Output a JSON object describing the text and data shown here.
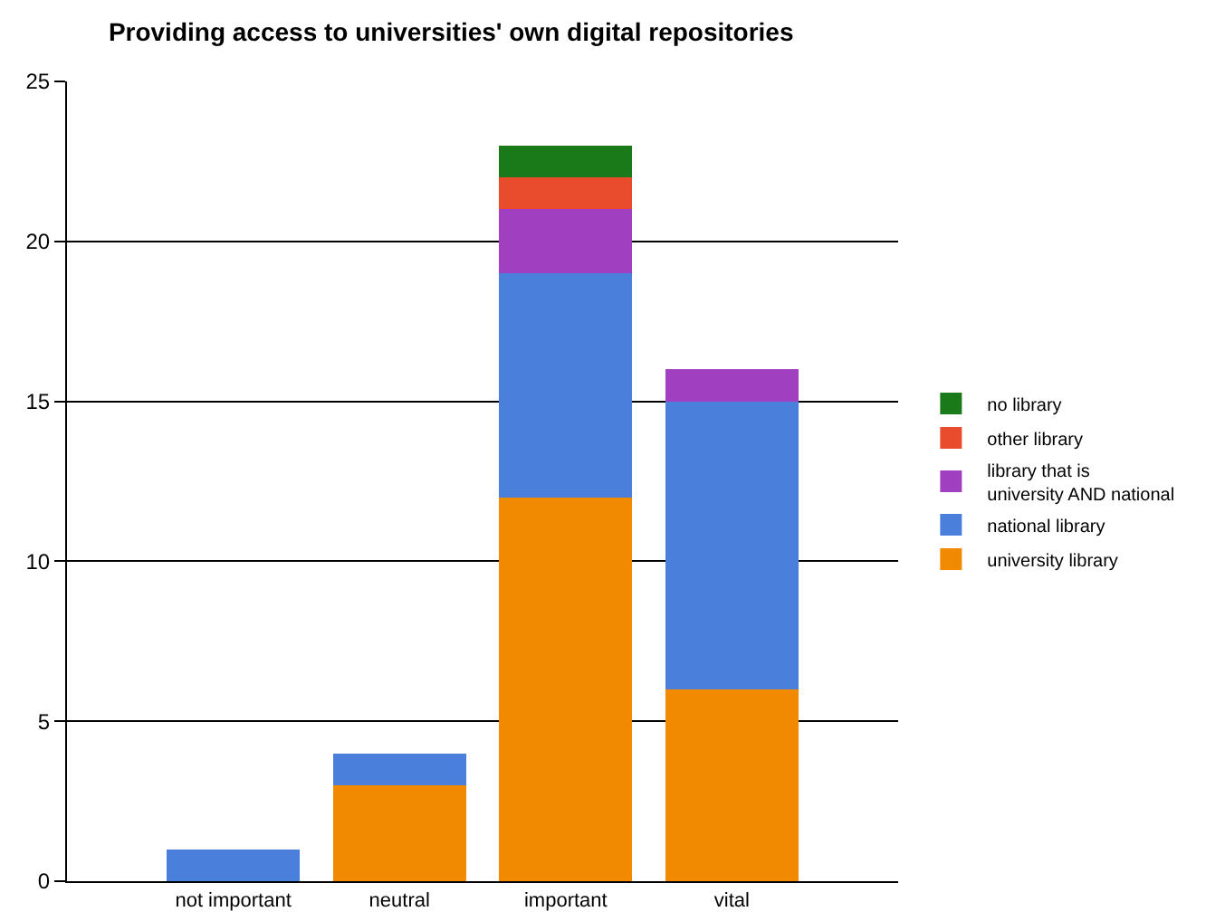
{
  "chart_data": {
    "type": "bar",
    "title": "Providing access to universities' own digital repositories",
    "categories": [
      "not important",
      "neutral",
      "important",
      "vital"
    ],
    "stacked": true,
    "series": [
      {
        "name": "university library",
        "color": "#f28a00",
        "values": [
          0,
          3,
          12,
          6
        ]
      },
      {
        "name": "national library",
        "color": "#4a7fdc",
        "values": [
          1,
          1,
          7,
          9
        ]
      },
      {
        "name": "library that is university AND national",
        "color": "#a040c0",
        "values": [
          0,
          0,
          2,
          1
        ]
      },
      {
        "name": "other library",
        "color": "#e84c2c",
        "values": [
          0,
          0,
          1,
          0
        ]
      },
      {
        "name": "no library",
        "color": "#1a7a1a",
        "values": [
          0,
          0,
          1,
          0
        ]
      }
    ],
    "ylim": [
      0,
      25
    ],
    "yticks": [
      0,
      5,
      10,
      15,
      20,
      25
    ],
    "grid": "y",
    "legend": "right"
  }
}
